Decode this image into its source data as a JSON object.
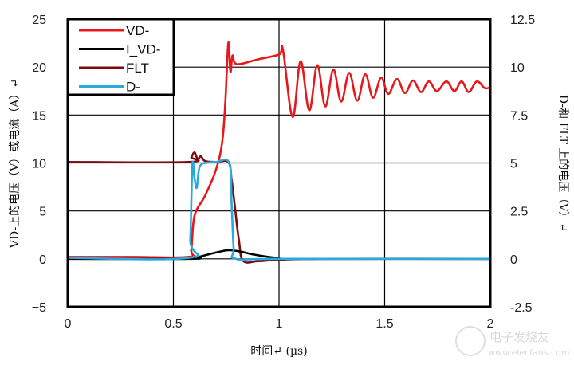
{
  "chart_data": {
    "type": "line",
    "title": "",
    "xlabel": "时间↵ (µs)",
    "ylabel_left": "VD-上的电压（V）或电流（A）↵",
    "ylabel_right": "D-和 FLT 上的电压（V）↵",
    "xlim": [
      0,
      2
    ],
    "ylim_left": [
      -5,
      25
    ],
    "ylim_right": [
      -2.5,
      12.5
    ],
    "x_ticks": [
      "0",
      "0.5",
      "1",
      "1.5",
      "2"
    ],
    "y_ticks_left": [
      "25",
      "20",
      "15",
      "10",
      "5",
      "0",
      "−5"
    ],
    "y_ticks_right": [
      "12.5",
      "10",
      "7.5",
      "5",
      "2.5",
      "0",
      "-2.5"
    ],
    "grid": true,
    "legend_position": "top-left",
    "series": [
      {
        "name": "VD-",
        "axis": "left",
        "color": "#e8171b",
        "points": [
          [
            0,
            0.2
          ],
          [
            0.3,
            0.2
          ],
          [
            0.57,
            0.2
          ],
          [
            0.585,
            1.0
          ],
          [
            0.6,
            4.5
          ],
          [
            0.65,
            6.6
          ],
          [
            0.7,
            9.2
          ],
          [
            0.73,
            12
          ],
          [
            0.745,
            16
          ],
          [
            0.76,
            22.5
          ],
          [
            0.77,
            19.5
          ],
          [
            0.78,
            21.2
          ],
          [
            0.8,
            20.3
          ],
          [
            0.9,
            20.8
          ],
          [
            1.0,
            21.3
          ],
          [
            1.019,
            21.75
          ],
          [
            1.064,
            14.8
          ],
          [
            1.102,
            20.6
          ],
          [
            1.143,
            15.5
          ],
          [
            1.181,
            20.2
          ],
          [
            1.219,
            15.9
          ],
          [
            1.257,
            19.75
          ],
          [
            1.294,
            16.4
          ],
          [
            1.332,
            19.4
          ],
          [
            1.37,
            16.5
          ],
          [
            1.408,
            19.25
          ],
          [
            1.445,
            16.8
          ],
          [
            1.483,
            18.9
          ],
          [
            1.517,
            17.2
          ],
          [
            1.558,
            18.75
          ],
          [
            1.596,
            17.3
          ],
          [
            1.634,
            18.6
          ],
          [
            1.672,
            17.4
          ],
          [
            1.709,
            18.5
          ],
          [
            1.747,
            17.5
          ],
          [
            1.792,
            18.5
          ],
          [
            1.83,
            17.5
          ],
          [
            1.864,
            18.5
          ],
          [
            1.898,
            17.4
          ],
          [
            1.936,
            18.5
          ],
          [
            1.974,
            17.8
          ],
          [
            2.0,
            17.9
          ]
        ]
      },
      {
        "name": "I_VD-",
        "axis": "left",
        "color": "#000000",
        "points": [
          [
            0,
            0
          ],
          [
            0.57,
            0
          ],
          [
            0.62,
            0.2
          ],
          [
            0.68,
            0.55
          ],
          [
            0.74,
            0.85
          ],
          [
            0.77,
            0.9
          ],
          [
            0.82,
            0.75
          ],
          [
            0.88,
            0.45
          ],
          [
            0.95,
            0.2
          ],
          [
            1.0,
            0.08
          ],
          [
            1.05,
            0
          ],
          [
            2.0,
            0
          ]
        ]
      },
      {
        "name": "FLT",
        "axis": "right",
        "color": "#7a0c10",
        "points": [
          [
            0,
            5.05
          ],
          [
            0.57,
            5.05
          ],
          [
            0.585,
            5.3
          ],
          [
            0.6,
            5.55
          ],
          [
            0.615,
            5.2
          ],
          [
            0.63,
            5.35
          ],
          [
            0.65,
            5.1
          ],
          [
            0.7,
            5.05
          ],
          [
            0.76,
            5.05
          ],
          [
            0.775,
            4.2
          ],
          [
            0.79,
            2.8
          ],
          [
            0.81,
            1.0
          ],
          [
            0.83,
            -0.1
          ],
          [
            0.9,
            -0.12
          ],
          [
            1.0,
            -0.05
          ],
          [
            1.2,
            0
          ],
          [
            2.0,
            0
          ]
        ]
      },
      {
        "name": "D-",
        "axis": "right",
        "color": "#2aa9dc",
        "points": [
          [
            0,
            0.05
          ],
          [
            0.57,
            0.05
          ],
          [
            0.58,
            1.0
          ],
          [
            0.59,
            4.9
          ],
          [
            0.6,
            4.2
          ],
          [
            0.61,
            3.7
          ],
          [
            0.62,
            4.6
          ],
          [
            0.63,
            4.9
          ],
          [
            0.65,
            5.0
          ],
          [
            0.7,
            5.05
          ],
          [
            0.765,
            5.0
          ],
          [
            0.775,
            3.0
          ],
          [
            0.785,
            0.6
          ],
          [
            0.795,
            0
          ],
          [
            1.0,
            0
          ],
          [
            2.0,
            0
          ]
        ]
      }
    ]
  },
  "watermark": {
    "logo_text": "电子发烧友",
    "url_text": "www.elecfans.com"
  }
}
